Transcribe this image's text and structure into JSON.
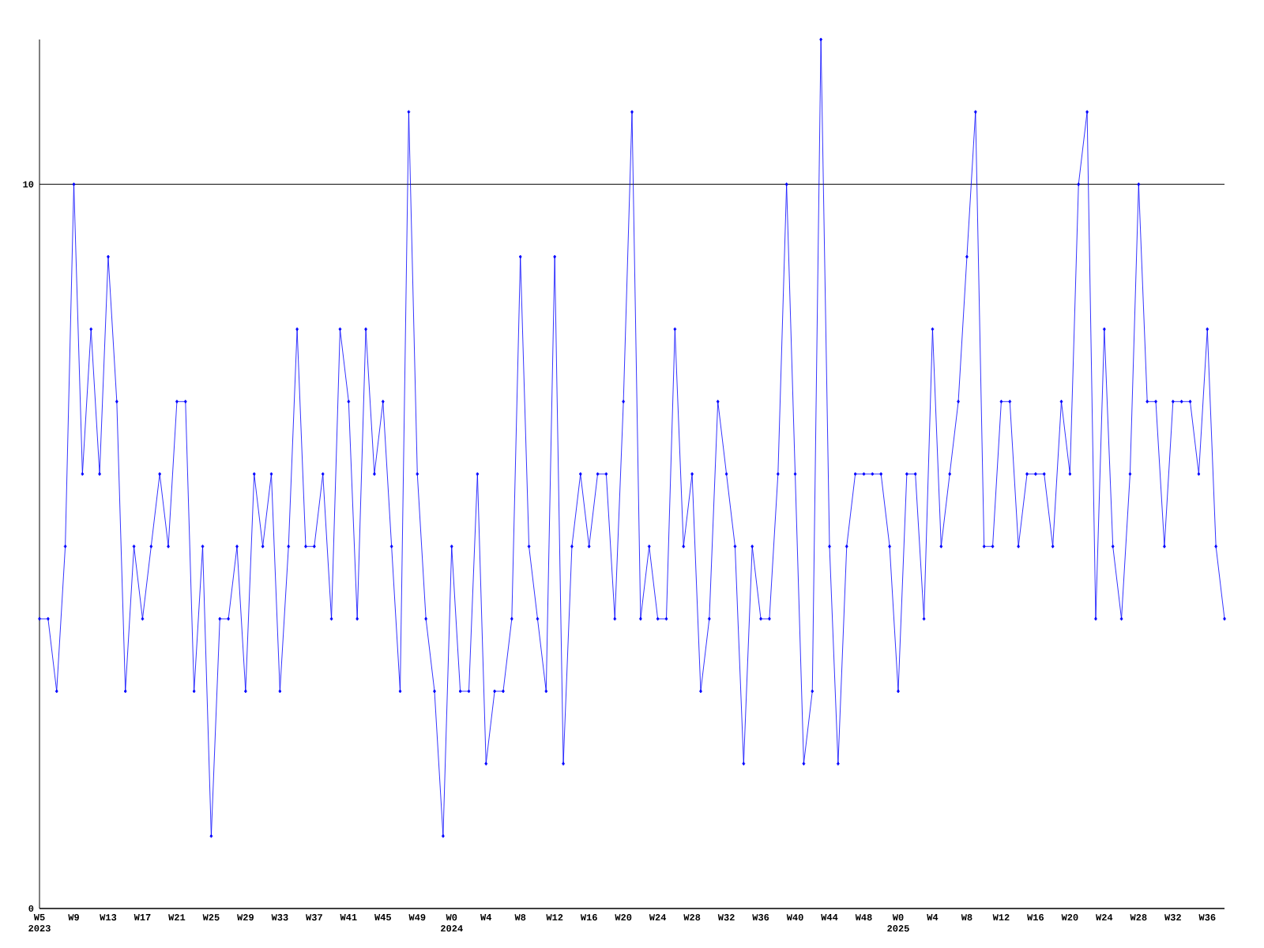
{
  "chart_data": {
    "type": "line",
    "categories": [
      "W5 2023",
      null,
      null,
      null,
      "W9",
      null,
      null,
      null,
      "W13",
      null,
      null,
      null,
      "W17",
      null,
      null,
      null,
      "W21",
      null,
      null,
      null,
      "W25",
      null,
      null,
      null,
      "W29",
      null,
      null,
      null,
      "W33",
      null,
      null,
      null,
      "W37",
      null,
      null,
      null,
      "W41",
      null,
      null,
      null,
      "W45",
      null,
      null,
      null,
      "W49",
      null,
      null,
      null,
      "W0 2024",
      null,
      null,
      null,
      "W4",
      null,
      null,
      null,
      "W8",
      null,
      null,
      null,
      "W12",
      null,
      null,
      null,
      "W16",
      null,
      null,
      null,
      "W20",
      null,
      null,
      null,
      "W24",
      null,
      null,
      null,
      "W28",
      null,
      null,
      null,
      "W32",
      null,
      null,
      null,
      "W36",
      null,
      null,
      null,
      "W40",
      null,
      null,
      null,
      "W44",
      null,
      null,
      null,
      "W48",
      null,
      null,
      null,
      "W0 2025",
      null,
      null,
      null,
      "W4",
      null,
      null,
      null,
      "W8",
      null,
      null,
      null,
      "W12",
      null,
      null,
      null,
      "W16",
      null,
      null,
      null,
      "W20",
      null,
      null,
      null,
      "W24",
      null,
      null,
      null,
      "W28",
      null,
      null,
      null,
      "W32",
      null,
      null,
      null,
      "W36",
      null,
      null
    ],
    "values": [
      4,
      4,
      3,
      5,
      10,
      6,
      8,
      6,
      9,
      7,
      3,
      5,
      4,
      5,
      6,
      5,
      7,
      7,
      3,
      5,
      1,
      4,
      4,
      5,
      3,
      6,
      5,
      6,
      3,
      5,
      8,
      5,
      5,
      6,
      4,
      8,
      7,
      4,
      8,
      6,
      7,
      5,
      3,
      11,
      6,
      4,
      3,
      1,
      5,
      3,
      3,
      6,
      2,
      3,
      3,
      4,
      9,
      5,
      4,
      3,
      9,
      2,
      5,
      6,
      5,
      6,
      6,
      4,
      7,
      11,
      4,
      5,
      4,
      4,
      8,
      5,
      6,
      3,
      4,
      7,
      6,
      5,
      2,
      5,
      4,
      4,
      6,
      10,
      6,
      2,
      3,
      12,
      5,
      2,
      5,
      6,
      6,
      6,
      6,
      5,
      3,
      6,
      6,
      4,
      8,
      5,
      6,
      7,
      9,
      11,
      5,
      5,
      7,
      7,
      5,
      6,
      6,
      6,
      5,
      7,
      6,
      10,
      11,
      4,
      8,
      5,
      4,
      6,
      10,
      7,
      7,
      5,
      7,
      7,
      7,
      6,
      8,
      5,
      4
    ],
    "color": "#0000ff",
    "marker": "diamond",
    "ylim": [
      0,
      12
    ],
    "yticks": [
      0,
      10
    ],
    "grid": "y"
  }
}
